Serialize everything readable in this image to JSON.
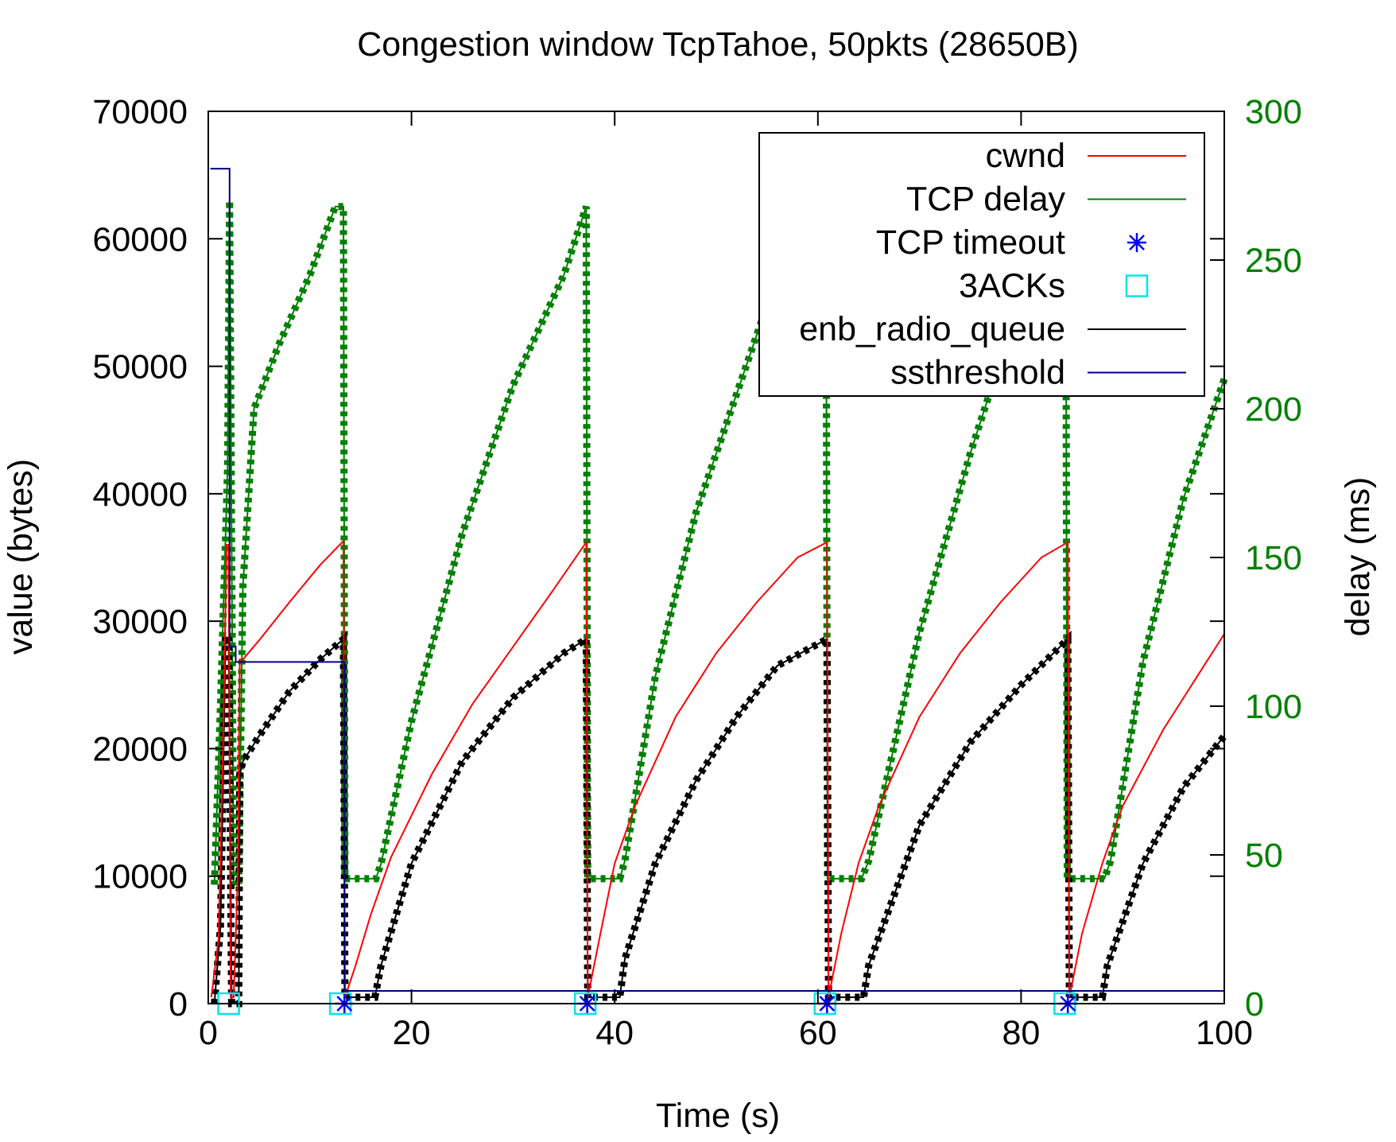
{
  "chart_data": {
    "type": "line",
    "title": "Congestion window TcpTahoe, 50pkts (28650B)",
    "xlabel": "Time (s)",
    "ylabel": "value (bytes)",
    "y2label": "delay (ms)",
    "xlim": [
      0,
      100
    ],
    "ylim": [
      0,
      70000
    ],
    "y2lim": [
      0,
      300
    ],
    "x_ticks": [
      "0",
      "20",
      "40",
      "60",
      "80",
      "100"
    ],
    "y_ticks": [
      "0",
      "10000",
      "20000",
      "30000",
      "40000",
      "50000",
      "60000",
      "70000"
    ],
    "y2_ticks": [
      "0",
      "50",
      "100",
      "150",
      "200",
      "250",
      "300"
    ],
    "grid": false,
    "legend_position": "top-right",
    "colors": {
      "cwnd": "#ff0000",
      "delay": "#008000",
      "timeout": "#0000ff",
      "acks": "#00e5ee",
      "queue": "#000000",
      "ssthresh": "#000080",
      "y2axis": "#008000"
    },
    "series": [
      {
        "name": "cwnd",
        "axis": "y",
        "x": [
          0.3,
          1.0,
          1.4,
          1.8,
          2.0,
          2.2,
          2.5,
          2.9,
          3.1,
          3.4,
          5,
          8,
          11,
          13.3,
          13.45,
          14.5,
          16,
          18,
          22,
          26,
          30,
          34,
          37.2,
          37.35,
          38.6,
          40,
          42,
          46,
          50,
          54,
          58,
          60.9,
          61.05,
          62.3,
          64,
          66,
          70,
          74,
          78,
          82,
          84.6,
          84.75,
          86,
          88,
          90,
          94,
          98,
          100
        ],
        "y": [
          500,
          5000,
          18000,
          36000,
          36000,
          500,
          500,
          10000,
          27000,
          27000,
          28500,
          31500,
          34400,
          36300,
          500,
          3000,
          7000,
          11500,
          18000,
          23500,
          28000,
          32500,
          36200,
          500,
          5500,
          11000,
          15500,
          22500,
          27500,
          31500,
          35000,
          36200,
          500,
          5500,
          11000,
          15500,
          22500,
          27500,
          31500,
          35000,
          36200,
          500,
          5500,
          11000,
          15500,
          21500,
          26500,
          29000
        ]
      },
      {
        "name": "TCP delay",
        "axis": "y2",
        "x": [
          0.6,
          1.2,
          1.9,
          2.1,
          2.5,
          3.0,
          3.4,
          4.5,
          7,
          10,
          12.5,
          13.3,
          13.45,
          14,
          16.5,
          17,
          20,
          25,
          30,
          35,
          37.2,
          37.35,
          40.5,
          41,
          44,
          48,
          52,
          56,
          60.8,
          60.95,
          64.3,
          65,
          70,
          75,
          80,
          84.4,
          84.55,
          88.2,
          88.8,
          92,
          96,
          100
        ],
        "y": [
          40,
          100,
          180,
          270,
          40,
          40,
          140,
          200,
          222,
          245,
          268,
          268,
          42,
          42,
          42,
          47,
          95,
          158,
          208,
          245,
          268,
          42,
          42,
          48,
          110,
          165,
          205,
          245,
          268,
          42,
          42,
          48,
          125,
          185,
          238,
          268,
          42,
          42,
          48,
          115,
          170,
          210
        ]
      },
      {
        "name": "enb_radio_queue",
        "axis": "y",
        "x": [
          0.6,
          1.2,
          1.7,
          2.0,
          2.3,
          3.0,
          3.1,
          3.4,
          5,
          8,
          11,
          13.3,
          13.45,
          16.4,
          17,
          20,
          25,
          30,
          35,
          37.2,
          37.35,
          40.5,
          41,
          44,
          48,
          52,
          56,
          60.9,
          61.05,
          64.5,
          65,
          70,
          75,
          80,
          84.6,
          84.75,
          88,
          88.5,
          92,
          96,
          100
        ],
        "y": [
          0,
          6000,
          28500,
          28500,
          0,
          0,
          18000,
          19000,
          21000,
          24500,
          27000,
          28600,
          500,
          500,
          3000,
          11000,
          19000,
          24000,
          27500,
          28600,
          500,
          500,
          3500,
          11000,
          17500,
          22500,
          26500,
          28600,
          500,
          500,
          3000,
          14000,
          20500,
          25000,
          28600,
          500,
          500,
          3000,
          11000,
          17000,
          21000
        ]
      },
      {
        "name": "ssthreshold",
        "axis": "y",
        "x": [
          0.2,
          2.1,
          2.1,
          2.7,
          2.7,
          13.4,
          13.4,
          100
        ],
        "y": [
          65500,
          65500,
          28000,
          28000,
          26800,
          26800,
          1000,
          1000
        ]
      },
      {
        "name": "TCP timeout",
        "axis": "y",
        "type": "scatter",
        "x": [
          13.4,
          37.3,
          60.9,
          84.6
        ],
        "y": [
          0,
          0,
          0,
          0
        ]
      },
      {
        "name": "3ACKs",
        "axis": "y",
        "type": "scatter",
        "x": [
          2.0,
          13.0,
          37.1,
          60.7,
          84.3
        ],
        "y": [
          0,
          0,
          0,
          0,
          0
        ]
      }
    ]
  }
}
